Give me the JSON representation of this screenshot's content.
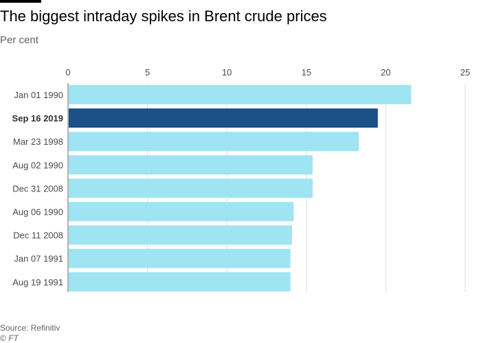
{
  "header": {
    "title": "The biggest intraday spikes in Brent crude prices",
    "subtitle": "Per cent"
  },
  "footer": {
    "source": "Source: Refinitiv",
    "copyright_symbol": "©",
    "copyright_brand": "FT"
  },
  "chart_data": {
    "type": "bar",
    "orientation": "horizontal",
    "title": "The biggest intraday spikes in Brent crude prices",
    "subtitle": "Per cent",
    "xlabel": "",
    "ylabel": "",
    "xlim": [
      0,
      25
    ],
    "ticks": [
      "0",
      "5",
      "10",
      "15",
      "20",
      "25"
    ],
    "tick_values": [
      0,
      5,
      10,
      15,
      20,
      25
    ],
    "grid": true,
    "categories": [
      "Jan 01 1990",
      "Sep 16 2019",
      "Mar 23 1998",
      "Aug 02 1990",
      "Dec 31 2008",
      "Aug 06 1990",
      "Dec 11 2008",
      "Jan 07 1991",
      "Aug 19 1991"
    ],
    "values": [
      21.6,
      19.5,
      18.3,
      15.4,
      15.4,
      14.2,
      14.1,
      14.0,
      14.0
    ],
    "highlighted_category": "Sep 16 2019",
    "colors": {
      "bar": "#9ee4f3",
      "highlight": "#1c5088",
      "grid": "#e0dcd8",
      "axis": "#66605c",
      "label": "#4d4845"
    }
  }
}
